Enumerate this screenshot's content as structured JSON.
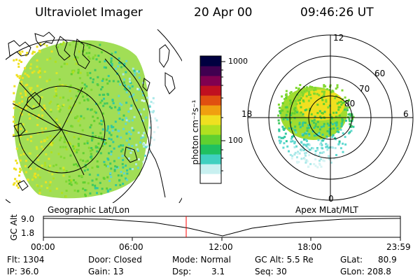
{
  "header": {
    "instrument": "Ultraviolet Imager",
    "date": "20 Apr 00",
    "time": "09:46:26 UT"
  },
  "colorbar": {
    "unit_label": "photon cm⁻²s⁻¹",
    "ticks": [
      "1000",
      "100"
    ],
    "scale": "log",
    "colors": [
      "#ffffff",
      "#c8f0f0",
      "#40d0c0",
      "#20c060",
      "#60d030",
      "#b0e020",
      "#f0e020",
      "#f0a010",
      "#e05010",
      "#c01020",
      "#800050",
      "#400050",
      "#000040"
    ]
  },
  "left_map": {
    "label": "Geographic Lat/Lon",
    "projection": "geographic"
  },
  "right_map": {
    "label": "Apex MLat/MLT",
    "mlt_labels": [
      "12",
      "18",
      "6",
      "0"
    ],
    "lat_labels": [
      "60",
      "70",
      "80"
    ]
  },
  "altitude_plot": {
    "ylabel": "GC Alt",
    "y_ticks": [
      "9.0",
      "1.8"
    ],
    "x_ticks": [
      "00:00",
      "06:00",
      "12:00",
      "18:00",
      "23:59"
    ],
    "current_time_marker": "09:46"
  },
  "status": {
    "flt": "Flt: 1304",
    "ip": "IP: 36.0",
    "door": "Door: Closed",
    "gain": "Gain: 13",
    "mode": "Mode: Normal",
    "dsp": "Dsp:",
    "dsp_val": "3.1",
    "gc_alt": "GC Alt: 5.5 Re",
    "seq": "Seq: 30",
    "glat": "GLat:",
    "glat_val": "80.9",
    "glon": "GLon: 208.8"
  }
}
